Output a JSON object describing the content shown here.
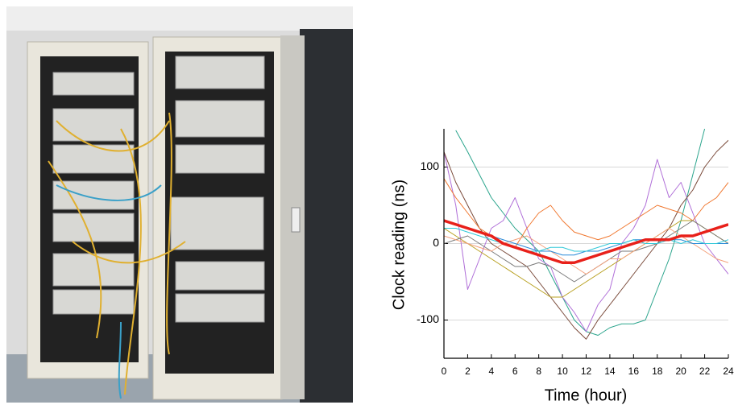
{
  "chart_data": {
    "type": "line",
    "x_label": "Time (hour)",
    "y_label": "Clock reading (ns)",
    "x": [
      0,
      1,
      2,
      3,
      4,
      5,
      6,
      7,
      8,
      9,
      10,
      11,
      12,
      13,
      14,
      15,
      16,
      17,
      18,
      19,
      20,
      21,
      22,
      23,
      24
    ],
    "xlim": [
      0,
      24
    ],
    "xticks": [
      0,
      2,
      4,
      6,
      8,
      10,
      12,
      14,
      16,
      18,
      20,
      22,
      24
    ],
    "ylim": [
      -150,
      150
    ],
    "yticks": [
      -100,
      0,
      100
    ],
    "grid": true,
    "series": [
      {
        "color": "#2ca58d",
        "width": 1,
        "values": [
          null,
          148,
          120,
          90,
          60,
          40,
          20,
          5,
          -10,
          -40,
          -70,
          -100,
          -115,
          -120,
          -110,
          -105,
          -105,
          -100,
          -60,
          -20,
          30,
          90,
          150,
          null,
          null
        ]
      },
      {
        "color": "#b06fd8",
        "width": 1,
        "values": [
          120,
          50,
          -60,
          -20,
          20,
          30,
          60,
          20,
          -20,
          -30,
          -70,
          -90,
          -115,
          -80,
          -60,
          0,
          20,
          50,
          110,
          60,
          80,
          40,
          0,
          -20,
          -40
        ]
      },
      {
        "color": "#7a4a3a",
        "width": 1,
        "values": [
          120,
          80,
          50,
          20,
          0,
          -10,
          -20,
          -30,
          -50,
          -70,
          -90,
          -110,
          -125,
          -100,
          -80,
          -60,
          -40,
          -20,
          0,
          20,
          50,
          70,
          100,
          120,
          135
        ]
      },
      {
        "color": "#f07830",
        "width": 1,
        "values": [
          85,
          60,
          40,
          20,
          10,
          0,
          -5,
          20,
          40,
          50,
          30,
          15,
          10,
          5,
          10,
          20,
          30,
          40,
          50,
          45,
          40,
          30,
          50,
          60,
          80
        ]
      },
      {
        "color": "#b8a020",
        "width": 1,
        "values": [
          20,
          10,
          0,
          -10,
          -20,
          -30,
          -40,
          -50,
          -60,
          -70,
          -70,
          -60,
          -50,
          -40,
          -30,
          -20,
          -10,
          0,
          10,
          20,
          30,
          30,
          20,
          10,
          0
        ]
      },
      {
        "color": "#7a7a7a",
        "width": 1,
        "values": [
          0,
          5,
          10,
          0,
          -10,
          -20,
          -30,
          -30,
          -25,
          -30,
          -40,
          -50,
          -40,
          -30,
          -20,
          -10,
          -10,
          -5,
          0,
          10,
          20,
          30,
          20,
          10,
          0
        ]
      },
      {
        "color": "#f4a07a",
        "width": 1,
        "values": [
          10,
          5,
          0,
          -5,
          -10,
          0,
          5,
          10,
          0,
          -10,
          -20,
          -30,
          -40,
          -30,
          -20,
          -20,
          -10,
          0,
          10,
          20,
          10,
          0,
          -10,
          -20,
          -25
        ]
      },
      {
        "color": "#2a8ad8",
        "width": 1,
        "values": [
          30,
          25,
          20,
          15,
          10,
          5,
          0,
          -5,
          -10,
          -10,
          -15,
          -15,
          -10,
          -10,
          -5,
          0,
          5,
          5,
          5,
          5,
          5,
          0,
          0,
          0,
          0
        ]
      },
      {
        "color": "#30c8d8",
        "width": 1,
        "values": [
          20,
          20,
          15,
          10,
          5,
          0,
          -5,
          -10,
          -10,
          -5,
          -5,
          -10,
          -10,
          -5,
          0,
          0,
          5,
          0,
          0,
          5,
          0,
          5,
          0,
          0,
          5
        ]
      },
      {
        "color": "#e8201a",
        "width": 3.5,
        "values": [
          30,
          25,
          20,
          15,
          10,
          0,
          -5,
          -10,
          -15,
          -20,
          -25,
          -25,
          -20,
          -15,
          -10,
          -5,
          0,
          5,
          5,
          5,
          10,
          10,
          15,
          20,
          25
        ]
      }
    ]
  }
}
